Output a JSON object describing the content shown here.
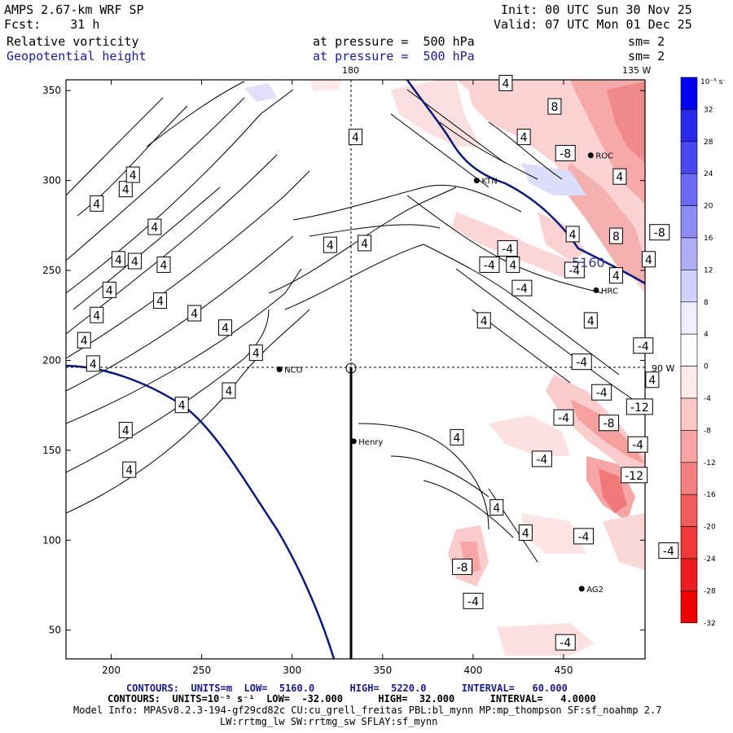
{
  "header": {
    "model": "AMPS 2.67-km WRF SP",
    "forecast": "Fcst:    31 h",
    "init": "Init: 00 UTC Sun 30 Nov 25",
    "valid": "Valid: 07 UTC Mon 01 Dec 25",
    "field1_name": "Relative vorticity",
    "field1_level": "at pressure =  500 hPa",
    "field1_smooth": "sm= 2",
    "field2_name": "Geopotential height",
    "field2_level": "at pressure =  500 hPa",
    "field2_smooth": "sm= 2"
  },
  "map": {
    "lon_label_top": "180",
    "lon_label_topright": "135 W",
    "lon_label_right": "90 W",
    "x_ticks": [
      "200",
      "250",
      "300",
      "350",
      "400",
      "450"
    ],
    "y_ticks": [
      "350",
      "300",
      "250",
      "200",
      "150",
      "100",
      "50"
    ],
    "x_tick_values": [
      200,
      250,
      300,
      350,
      400,
      450
    ],
    "y_tick_values": [
      350,
      300,
      250,
      200,
      150,
      100,
      50
    ],
    "x_range": [
      175,
      495
    ],
    "y_range": [
      34,
      356
    ],
    "stations": [
      {
        "name": "NCO",
        "x": 293,
        "y": 195
      },
      {
        "name": "Henry",
        "x": 334,
        "y": 155
      },
      {
        "name": "KTN",
        "x": 402,
        "y": 300
      },
      {
        "name": "ROC",
        "x": 465,
        "y": 314
      },
      {
        "name": "HRC",
        "x": 468,
        "y": 239
      },
      {
        "name": "AG2",
        "x": 460,
        "y": 73
      }
    ],
    "height_contour_label": "5160",
    "contour_labels": [
      {
        "t": "4",
        "x": 190,
        "y": 198
      },
      {
        "t": "4",
        "x": 185,
        "y": 211
      },
      {
        "t": "4",
        "x": 192,
        "y": 225
      },
      {
        "t": "4",
        "x": 199,
        "y": 239
      },
      {
        "t": "4",
        "x": 204,
        "y": 256
      },
      {
        "t": "4",
        "x": 213,
        "y": 255
      },
      {
        "t": "4",
        "x": 208,
        "y": 295
      },
      {
        "t": "4",
        "x": 224,
        "y": 274
      },
      {
        "t": "4",
        "x": 229,
        "y": 253
      },
      {
        "t": "4",
        "x": 212,
        "y": 303
      },
      {
        "t": "4",
        "x": 192,
        "y": 287
      },
      {
        "t": "4",
        "x": 227,
        "y": 233
      },
      {
        "t": "4",
        "x": 246,
        "y": 226
      },
      {
        "t": "4",
        "x": 263,
        "y": 218
      },
      {
        "t": "4",
        "x": 280,
        "y": 204
      },
      {
        "t": "4",
        "x": 265,
        "y": 183
      },
      {
        "t": "4",
        "x": 239,
        "y": 175
      },
      {
        "t": "4",
        "x": 208,
        "y": 161
      },
      {
        "t": "4",
        "x": 210,
        "y": 139
      },
      {
        "t": "4",
        "x": 321,
        "y": 264
      },
      {
        "t": "4",
        "x": 340,
        "y": 265
      },
      {
        "t": "4",
        "x": 335,
        "y": 324
      },
      {
        "t": "4",
        "x": 418,
        "y": 354
      },
      {
        "t": "8",
        "x": 445,
        "y": 341
      },
      {
        "t": "4",
        "x": 481,
        "y": 302
      },
      {
        "t": "8",
        "x": 479,
        "y": 269
      },
      {
        "t": "4",
        "x": 497,
        "y": 256
      },
      {
        "t": "-8",
        "x": 503,
        "y": 271
      },
      {
        "t": "-8",
        "x": 451,
        "y": 315
      },
      {
        "t": "4",
        "x": 428,
        "y": 324
      },
      {
        "t": "-4",
        "x": 419,
        "y": 262
      },
      {
        "t": "4",
        "x": 455,
        "y": 270
      },
      {
        "t": "-4",
        "x": 409,
        "y": 253
      },
      {
        "t": "4",
        "x": 422,
        "y": 253
      },
      {
        "t": "-4",
        "x": 456,
        "y": 250
      },
      {
        "t": "-4",
        "x": 427,
        "y": 240
      },
      {
        "t": "4",
        "x": 479,
        "y": 247
      },
      {
        "t": "4",
        "x": 406,
        "y": 222
      },
      {
        "t": "4",
        "x": 465,
        "y": 222
      },
      {
        "t": "-4",
        "x": 494,
        "y": 208
      },
      {
        "t": "-4",
        "x": 460,
        "y": 199
      },
      {
        "t": "4",
        "x": 499,
        "y": 189
      },
      {
        "t": "-4",
        "x": 471,
        "y": 182
      },
      {
        "t": "-12",
        "x": 492,
        "y": 174
      },
      {
        "t": "-4",
        "x": 450,
        "y": 168
      },
      {
        "t": "-8",
        "x": 475,
        "y": 165
      },
      {
        "t": "-4",
        "x": 491,
        "y": 153
      },
      {
        "t": "4",
        "x": 391,
        "y": 157
      },
      {
        "t": "-4",
        "x": 438,
        "y": 145
      },
      {
        "t": "-12",
        "x": 489,
        "y": 136
      },
      {
        "t": "4",
        "x": 413,
        "y": 118
      },
      {
        "t": "4",
        "x": 429,
        "y": 104
      },
      {
        "t": "-4",
        "x": 461,
        "y": 102
      },
      {
        "t": "-4",
        "x": 508,
        "y": 94
      },
      {
        "t": "-8",
        "x": 394,
        "y": 85
      },
      {
        "t": "-4",
        "x": 400,
        "y": 66
      },
      {
        "t": "-4",
        "x": 451,
        "y": 43
      }
    ]
  },
  "colorbar": {
    "unit_label": "10⁻⁵ s⁻¹",
    "labels": [
      "32",
      "28",
      "24",
      "20",
      "16",
      "12",
      "8",
      "4",
      "0",
      "-4",
      "-8",
      "-12",
      "-16",
      "-20",
      "-24",
      "-28",
      "-32"
    ],
    "colors": [
      "#0000ee",
      "#2828ee",
      "#4848f0",
      "#6a6af2",
      "#8c8cf4",
      "#aeaef6",
      "#d0d0fa",
      "#eeeefe",
      "#ffffff",
      "#fdeaea",
      "#fbc8c8",
      "#f8a4a4",
      "#f58080",
      "#f25c5c",
      "#f03838",
      "#ee1c1c",
      "#ee0000"
    ]
  },
  "footer": {
    "line1": "CONTOURS:  UNITS=m  LOW=  5160.0      HIGH=  5220.0      INTERVAL=   60.000",
    "line2": "CONTOURS:  UNITS=10⁻⁵ s⁻¹  LOW=  -32.000      HIGH=  32.000      INTERVAL=   4.0000",
    "line3": "Model Info: MPASv8.2.3-194-gf29cd82c CU:cu_grell_freitas PBL:bl_mynn MP:mp_thompson SF:sf_noahmp 2.7",
    "line4": "LW:rrtmg_lw SW:rrtmg_sw SFLAY:sf_mynn"
  }
}
